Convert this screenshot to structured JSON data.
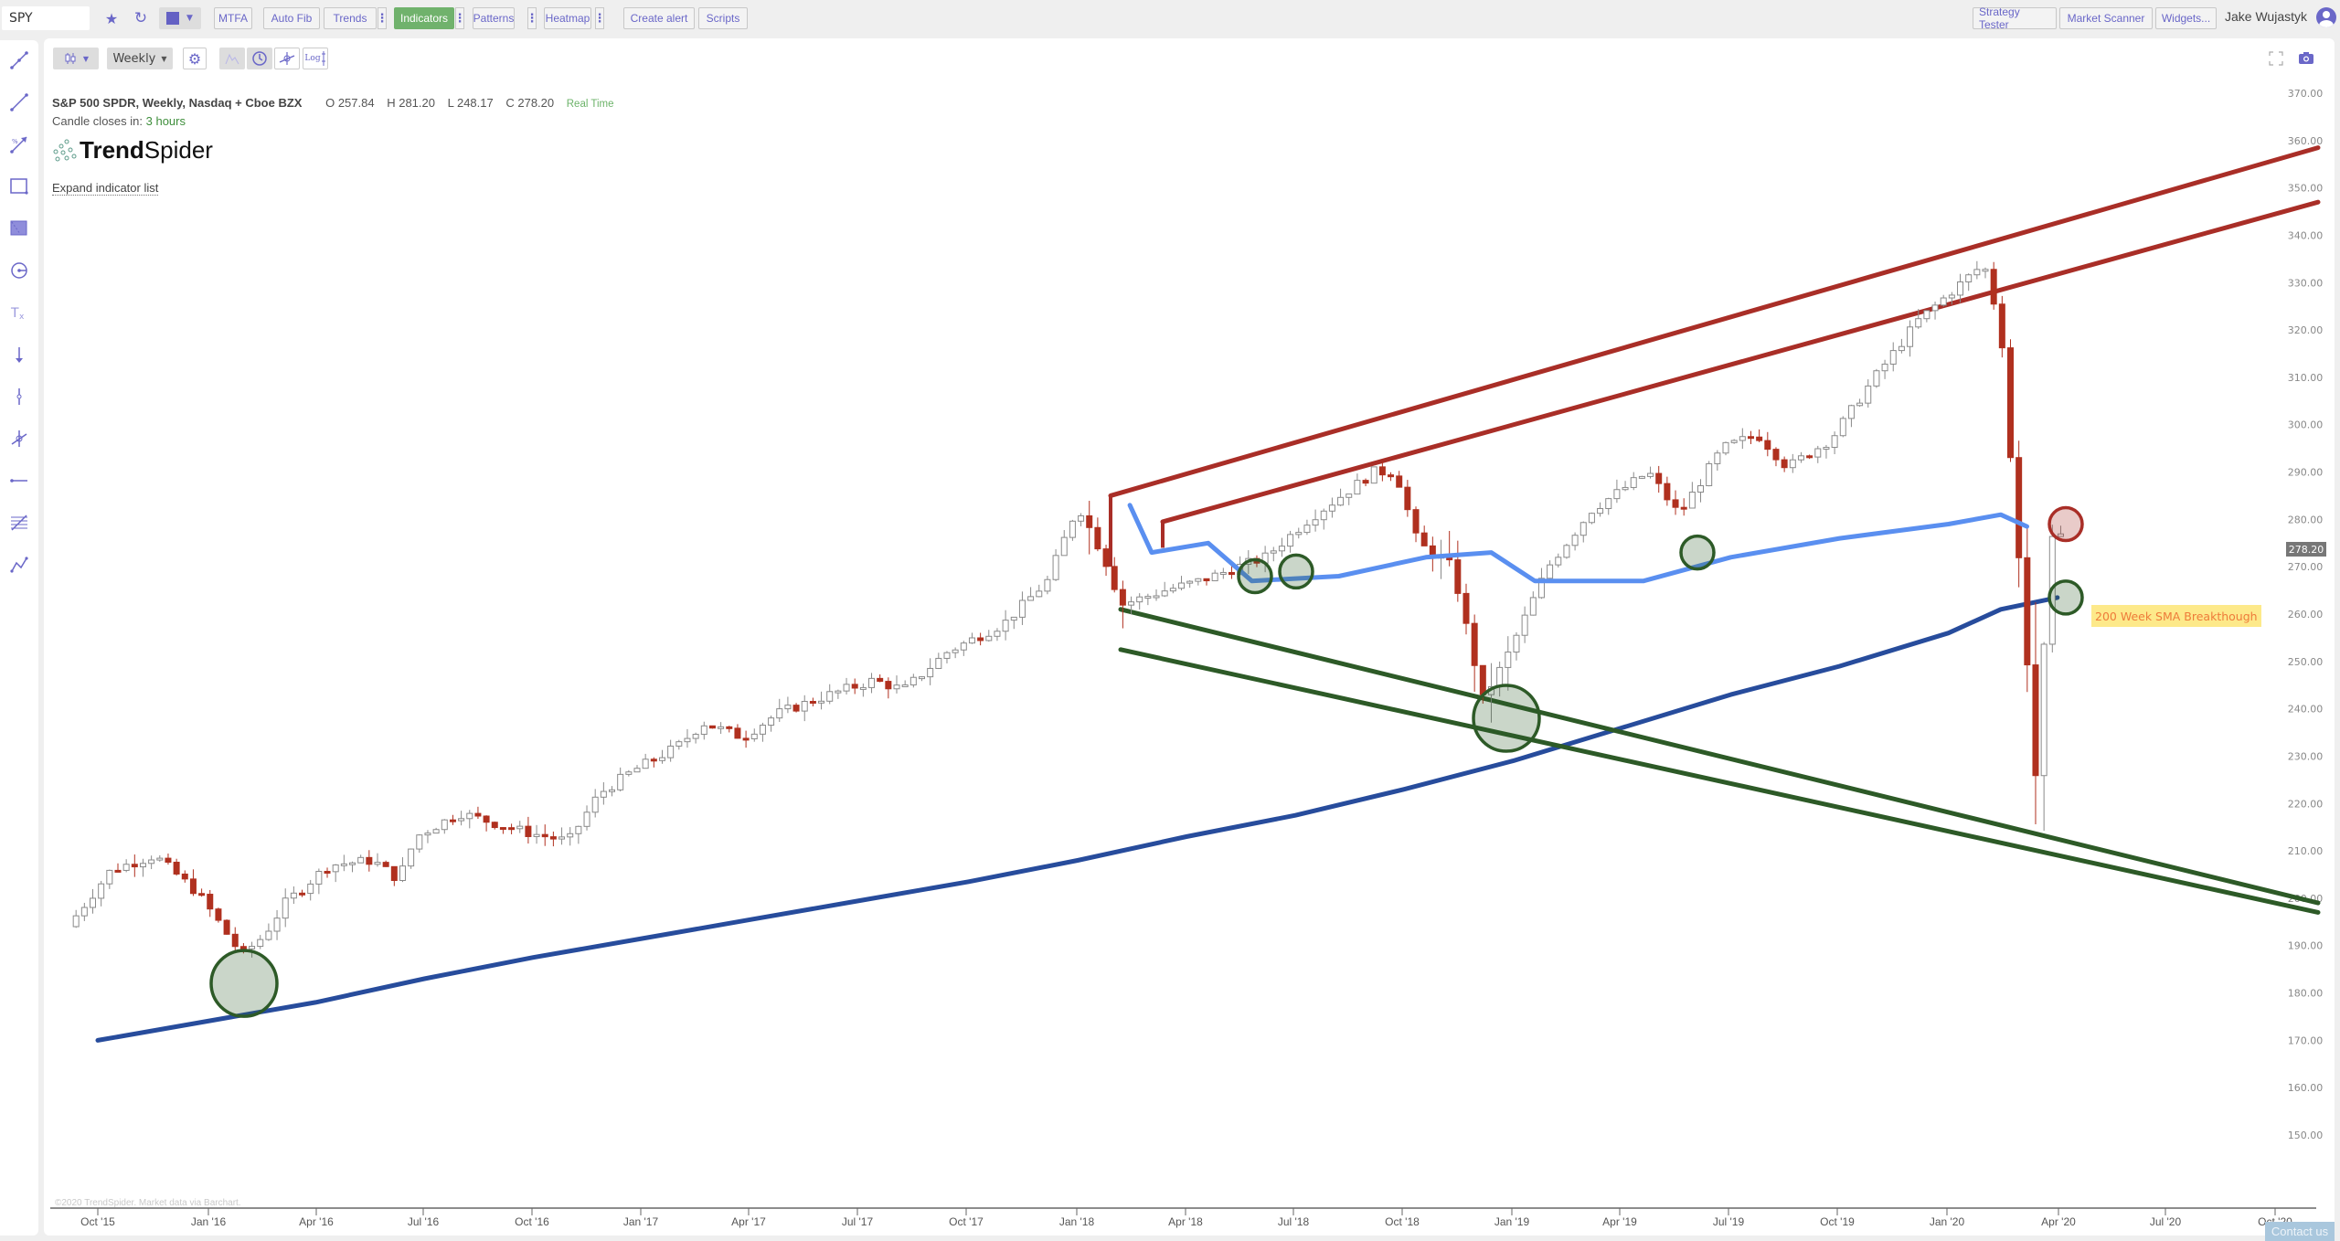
{
  "toolbar": {
    "symbol": "SPY",
    "buttons": {
      "mtfa": "MTFA",
      "auto_fib": "Auto Fib",
      "trends": "Trends",
      "indicators": "Indicators",
      "patterns": "Patterns",
      "heatmap": "Heatmap",
      "create_alert": "Create alert",
      "scripts": "Scripts",
      "strategy_tester": "Strategy Tester",
      "market_scanner": "Market Scanner",
      "widgets": "Widgets..."
    },
    "menu_dots": "⋮",
    "user_name": "Jake Wujastyk",
    "accent_color": "#6a67c8",
    "active_color": "#70b26c"
  },
  "chart_controls": {
    "chart_type_icon": "candlestick-icon",
    "timeframe": "Weekly",
    "log_label": "Log"
  },
  "chart_header": {
    "title": "S&P 500 SPDR, Weekly, Nasdaq + Cboe BZX",
    "open": "O 257.84",
    "high": "H 281.20",
    "low": "L 248.17",
    "close": "C 278.20",
    "feed": "Real Time",
    "candle_close_label": "Candle closes in:",
    "candle_close_value": "3 hours",
    "logo_bold": "Trend",
    "logo_light": "Spider",
    "expand_link": "Expand indicator list"
  },
  "footer": {
    "copyright": "©2020 TrendSpider. Market data via Barchart.",
    "contact": "Contact us"
  },
  "chart_data": {
    "type": "candlestick",
    "title": "S&P 500 SPDR, Weekly, Nasdaq + Cboe BZX",
    "symbol": "SPY",
    "timeframe": "Weekly",
    "last_price": "278.20",
    "ohlc_last": {
      "open": 257.84,
      "high": 281.2,
      "low": 248.17,
      "close": 278.2
    },
    "y_axis": {
      "ticks": [
        "370.00",
        "360.00",
        "350.00",
        "340.00",
        "330.00",
        "320.00",
        "310.00",
        "300.00",
        "290.00",
        "280.00",
        "270.00",
        "260.00",
        "250.00",
        "240.00",
        "230.00",
        "220.00",
        "210.00",
        "200.00",
        "190.00",
        "180.00",
        "170.00",
        "160.00",
        "150.00"
      ],
      "ylim": [
        145,
        375
      ],
      "position": "right"
    },
    "x_axis": {
      "ticks": [
        "Oct '15",
        "Jan '16",
        "Apr '16",
        "Jul '16",
        "Oct '16",
        "Jan '17",
        "Apr '17",
        "Jul '17",
        "Oct '17",
        "Jan '18",
        "Apr '18",
        "Jul '18",
        "Oct '18",
        "Jan '19",
        "Apr '19",
        "Jul '19",
        "Oct '19",
        "Jan '20",
        "Apr '20",
        "Jul '20",
        "Oct '20"
      ],
      "tick_x": [
        107,
        228,
        346,
        463,
        582,
        701,
        819,
        938,
        1057,
        1178,
        1297,
        1415,
        1534,
        1654,
        1772,
        1891,
        2010,
        2130,
        2252,
        2369,
        2489
      ]
    },
    "grid": false,
    "series": [
      {
        "name": "SPY weekly candles",
        "type": "candlestick",
        "up_color": "#ffffff",
        "up_border": "#888888",
        "down_color": "#b0301f"
      },
      {
        "name": "Light blue moving average (~50 week)",
        "type": "line",
        "color": "#5a8ff0",
        "points": [
          [
            2018.12,
            283
          ],
          [
            2018.17,
            273
          ],
          [
            2018.3,
            275
          ],
          [
            2018.4,
            267
          ],
          [
            2018.6,
            268
          ],
          [
            2018.8,
            272
          ],
          [
            2018.95,
            273
          ],
          [
            2019.05,
            267
          ],
          [
            2019.3,
            267
          ],
          [
            2019.5,
            272
          ],
          [
            2019.75,
            276
          ],
          [
            2020.0,
            279
          ],
          [
            2020.12,
            281
          ],
          [
            2020.18,
            278.5
          ]
        ]
      },
      {
        "name": "200 Week SMA",
        "type": "line",
        "color": "#274c9c",
        "points": [
          [
            2015.75,
            170
          ],
          [
            2016.0,
            174
          ],
          [
            2016.25,
            178
          ],
          [
            2016.5,
            183
          ],
          [
            2016.75,
            187.5
          ],
          [
            2017.0,
            191.5
          ],
          [
            2017.25,
            195.5
          ],
          [
            2017.5,
            199.5
          ],
          [
            2017.75,
            203.5
          ],
          [
            2018.0,
            208
          ],
          [
            2018.25,
            213
          ],
          [
            2018.5,
            217.5
          ],
          [
            2018.75,
            223
          ],
          [
            2019.0,
            229
          ],
          [
            2019.25,
            236
          ],
          [
            2019.5,
            243
          ],
          [
            2019.75,
            249
          ],
          [
            2020.0,
            256
          ],
          [
            2020.12,
            261
          ],
          [
            2020.25,
            263.5
          ]
        ]
      }
    ],
    "trendlines": [
      {
        "name": "Upper resistance channel line 1",
        "color": "#a92e27",
        "from": [
          "Jan '18",
          285
        ],
        "to": [
          "Oct '20",
          358.5
        ]
      },
      {
        "name": "Upper resistance channel line 2",
        "color": "#a92e27",
        "from": [
          "Feb '18",
          279.5
        ],
        "to": [
          "Oct '20",
          347
        ]
      },
      {
        "name": "Lower support line 1",
        "color": "#2d5a27",
        "from": [
          "Feb '18",
          261
        ],
        "to": [
          "Oct '20",
          199
        ]
      },
      {
        "name": "Lower support line 2",
        "color": "#2d5a27",
        "from": [
          "Feb '18",
          252.5
        ],
        "to": [
          "Oct '20",
          197
        ]
      }
    ],
    "markers": [
      {
        "type": "support-circle",
        "color": "#2d5a27",
        "x_label": "Feb '16",
        "price": 182
      },
      {
        "type": "support-circle",
        "color": "#2d5a27",
        "x_label": "Jun '18",
        "price": 268
      },
      {
        "type": "support-circle",
        "color": "#2d5a27",
        "x_label": "Jul '18",
        "price": 269
      },
      {
        "type": "support-circle",
        "color": "#2d5a27",
        "x_label": "Dec '18",
        "price": 238
      },
      {
        "type": "support-circle",
        "color": "#2d5a27",
        "x_label": "Jun '19",
        "price": 273
      },
      {
        "type": "resistance-circle",
        "color": "#a92e27",
        "x_label": "Apr '20",
        "price": 279
      },
      {
        "type": "support-circle",
        "color": "#2d5a27",
        "x_label": "Apr '20",
        "price": 263.5
      }
    ],
    "annotations": [
      {
        "text": "200 Week SMA Breakthough",
        "bg": "#fde98a",
        "color": "#ee7b3a",
        "price": 263.5
      }
    ]
  }
}
